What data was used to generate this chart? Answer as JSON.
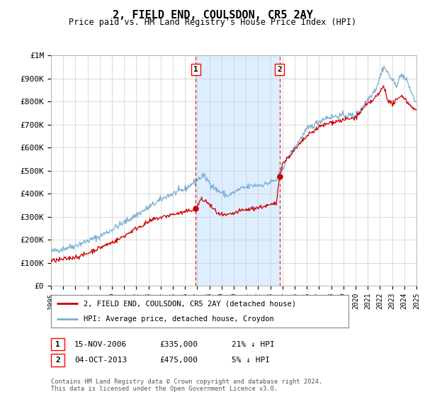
{
  "title": "2, FIELD END, COULSDON, CR5 2AY",
  "subtitle": "Price paid vs. HM Land Registry's House Price Index (HPI)",
  "ylabel_ticks": [
    "£0",
    "£100K",
    "£200K",
    "£300K",
    "£400K",
    "£500K",
    "£600K",
    "£700K",
    "£800K",
    "£900K",
    "£1M"
  ],
  "ytick_values": [
    0,
    100000,
    200000,
    300000,
    400000,
    500000,
    600000,
    700000,
    800000,
    900000,
    1000000
  ],
  "ylim": [
    0,
    1000000
  ],
  "year_start": 1995,
  "year_end": 2025,
  "hpi_color": "#7aaed6",
  "price_color": "#cc0000",
  "marker1_date": 2006.88,
  "marker1_price": 335000,
  "marker1_label": "15-NOV-2006",
  "marker1_amount": "£335,000",
  "marker1_pct": "21% ↓ HPI",
  "marker2_date": 2013.75,
  "marker2_price": 475000,
  "marker2_label": "04-OCT-2013",
  "marker2_amount": "£475,000",
  "marker2_pct": "5% ↓ HPI",
  "legend_line1": "2, FIELD END, COULSDON, CR5 2AY (detached house)",
  "legend_line2": "HPI: Average price, detached house, Croydon",
  "footnote1": "Contains HM Land Registry data © Crown copyright and database right 2024.",
  "footnote2": "This data is licensed under the Open Government Licence v3.0.",
  "shade_color": "#ddeeff",
  "background_color": "#ffffff"
}
